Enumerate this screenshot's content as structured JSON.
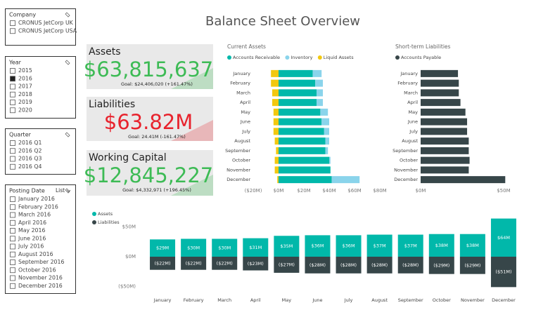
{
  "title": "Balance Sheet Overview",
  "slicers": [
    {
      "title": "Company",
      "items": [
        "CRONUS JetCorp UK",
        "CRONUS JetCorp USA"
      ]
    },
    {
      "title": "Year",
      "items": [
        "2015",
        "2016",
        "2017",
        "2018",
        "2019",
        "2020"
      ],
      "selected": "2016"
    },
    {
      "title": "Quarter",
      "items": [
        "2016 Q1",
        "2016 Q2",
        "2016 Q3",
        "2016 Q4"
      ]
    },
    {
      "title": "Posting Date",
      "mode": "List",
      "items": [
        "January 2016",
        "February 2016",
        "March 2016",
        "April 2016",
        "May 2016",
        "June 2016",
        "July 2016",
        "August 2016",
        "September 2016",
        "October 2016",
        "November 2016",
        "December 2016"
      ]
    }
  ],
  "kpis": [
    {
      "title": "Assets",
      "value": "$63,815,637",
      "goal": "Goal: $24,406,020 (+161.47%)",
      "color": "#3dbb55"
    },
    {
      "title": "Liabilities",
      "value": "$63.82M",
      "goal": "Goal: 24.41M (-161.47%)",
      "color": "#e8232d"
    },
    {
      "title": "Working Capital",
      "value": "$12,845,227",
      "goal": "Goal: $4,332,971 (+196.45%)",
      "color": "#3dbb55"
    }
  ],
  "chart_data": [
    {
      "type": "bar",
      "orientation": "horizontal",
      "stacked": true,
      "title": "Current Assets",
      "categories": [
        "January",
        "February",
        "March",
        "April",
        "May",
        "June",
        "July",
        "August",
        "September",
        "October",
        "November",
        "December"
      ],
      "series": [
        {
          "name": "Accounts Receivable",
          "color": "#01b8aa",
          "values": [
            27,
            29,
            30,
            30,
            33,
            34,
            36,
            37,
            37,
            40,
            41,
            42
          ]
        },
        {
          "name": "Inventory",
          "color": "#8ad4eb",
          "values": [
            7,
            6,
            5,
            5,
            6,
            6,
            4,
            3,
            2,
            1,
            0,
            22
          ]
        },
        {
          "name": "Liquid Assets",
          "color": "#f2c80f",
          "values": [
            -6,
            -6,
            -5,
            -5,
            -4,
            -4,
            -4,
            -3,
            -2,
            -3,
            -3,
            -1
          ]
        }
      ],
      "xlim": [
        -20,
        80
      ],
      "xticks": [
        {
          "value": -20,
          "label": "($20M)"
        },
        {
          "value": 0,
          "label": "$0M"
        },
        {
          "value": 20,
          "label": "$20M"
        },
        {
          "value": 40,
          "label": "$40M"
        },
        {
          "value": 60,
          "label": "$60M"
        },
        {
          "value": 80,
          "label": "$80M"
        }
      ],
      "legend": "top-left"
    },
    {
      "type": "bar",
      "orientation": "horizontal",
      "stacked": true,
      "title": "Short-term Liabilities",
      "categories": [
        "January",
        "February",
        "March",
        "April",
        "May",
        "June",
        "July",
        "August",
        "September",
        "October",
        "November",
        "December"
      ],
      "series": [
        {
          "name": "Accounts Payable",
          "color": "#374649",
          "values": [
            22.5,
            23,
            23,
            24,
            27,
            28,
            28,
            29,
            29,
            29.5,
            29,
            51
          ]
        }
      ],
      "xlim": [
        0,
        53
      ],
      "xticks": [
        {
          "value": 0,
          "label": "$0M"
        },
        {
          "value": 50,
          "label": "$50M"
        }
      ],
      "legend": "top-left"
    },
    {
      "type": "bar",
      "orientation": "vertical",
      "stacked": true,
      "categories": [
        "January",
        "February",
        "March",
        "April",
        "May",
        "June",
        "July",
        "August",
        "September",
        "October",
        "November",
        "December"
      ],
      "series": [
        {
          "name": "Assets",
          "color": "#01b8aa",
          "values": [
            29,
            30,
            30,
            31,
            35,
            36,
            36,
            37,
            37,
            38,
            38,
            64
          ],
          "value_labels": [
            "$29M",
            "$30M",
            "$30M",
            "$31M",
            "$35M",
            "$36M",
            "$36M",
            "$37M",
            "$37M",
            "$38M",
            "$38M",
            "$64M"
          ]
        },
        {
          "name": "Liabilities",
          "color": "#374649",
          "values": [
            -22,
            -22,
            -22,
            -23,
            -27,
            -28,
            -28,
            -28,
            -28,
            -29,
            -29,
            -51
          ],
          "value_labels": [
            "($22M)",
            "($22M)",
            "($22M)",
            "($23M)",
            "($27M)",
            "($28M)",
            "($28M)",
            "($28M)",
            "($28M)",
            "($29M)",
            "($29M)",
            "($51M)"
          ]
        }
      ],
      "ylim": [
        -60,
        70
      ],
      "yticks": [
        {
          "value": 50,
          "label": "$50M"
        },
        {
          "value": 0,
          "label": "$0M"
        },
        {
          "value": -50,
          "label": "($50M)"
        }
      ],
      "legend": "top-left"
    }
  ]
}
